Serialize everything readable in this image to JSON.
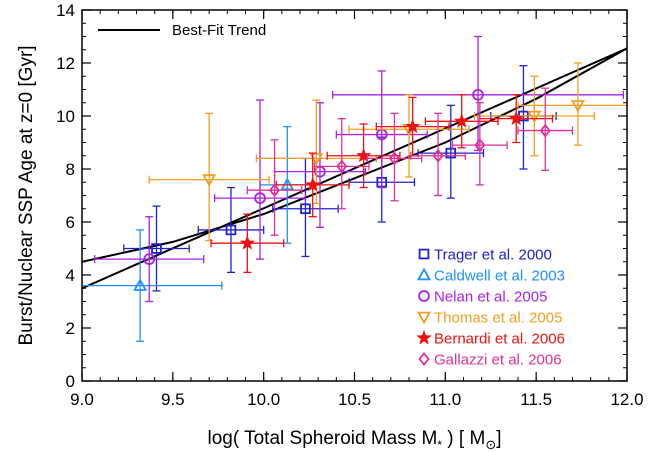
{
  "chart_data": {
    "type": "scatter",
    "xlabel": "log( Total Spheroid Mass M",
    "xlabel_sub": "*",
    "xlabel_unit_open": " )  [ M",
    "xlabel_unit_sub": "⊙",
    "xlabel_unit_close": "]",
    "ylabel": "Burst/Nuclear SSP Age at z=0  [Gyr]",
    "xlim": [
      9.0,
      12.0
    ],
    "ylim": [
      0,
      14
    ],
    "xticks": [
      "9.0",
      "9.5",
      "10.0",
      "10.5",
      "11.0",
      "11.5",
      "12.0"
    ],
    "yticks": [
      "0",
      "2",
      "4",
      "6",
      "8",
      "10",
      "12",
      "14"
    ],
    "legend_placement": "bottom-right",
    "trend": {
      "name": "Best-Fit Trend",
      "color": "#000000",
      "lines": [
        {
          "x": [
            9.0,
            12.0
          ],
          "y": [
            3.5,
            12.55
          ]
        },
        {
          "x": [
            9.0,
            9.5,
            10.0,
            10.5,
            11.0,
            11.5,
            12.0
          ],
          "y": [
            4.5,
            5.25,
            6.3,
            7.65,
            9.0,
            10.65,
            12.55
          ]
        }
      ]
    },
    "series": [
      {
        "name": "Trager et al. 2000",
        "marker": "square",
        "color": "#2222cc",
        "points": [
          {
            "x": 9.41,
            "y": 5.0,
            "xerr": 0.18,
            "yerr": [
              1.6,
              1.6
            ]
          },
          {
            "x": 9.82,
            "y": 5.7,
            "xerr": 0.18,
            "yerr": [
              1.6,
              1.6
            ]
          },
          {
            "x": 10.23,
            "y": 6.5,
            "xerr": 0.18,
            "yerr": [
              1.8,
              1.9
            ]
          },
          {
            "x": 10.65,
            "y": 7.5,
            "xerr": 0.18,
            "yerr": [
              1.5,
              1.7
            ]
          },
          {
            "x": 11.03,
            "y": 8.6,
            "xerr": 0.18,
            "yerr": [
              1.7,
              1.8
            ]
          },
          {
            "x": 11.43,
            "y": 10.0,
            "xerr": 0.18,
            "yerr": [
              2.0,
              1.9
            ]
          }
        ]
      },
      {
        "name": "Caldwell et al. 2003",
        "marker": "triangle-up",
        "color": "#1e90ff",
        "points": [
          {
            "x": 9.32,
            "y": 3.6,
            "xerr": 0.45,
            "yerr": [
              2.1,
              2.1
            ]
          },
          {
            "x": 10.13,
            "y": 7.4,
            "xerr": 0.15,
            "yerr": [
              2.2,
              2.2
            ]
          }
        ]
      },
      {
        "name": "Nelan et al. 2005",
        "marker": "circle",
        "color": "#aa22dd",
        "points": [
          {
            "x": 9.37,
            "y": 4.6,
            "xerr": 0.3,
            "yerr": [
              1.6,
              1.6
            ]
          },
          {
            "x": 9.98,
            "y": 6.9,
            "xerr": 0.25,
            "yerr": [
              2.3,
              3.7
            ]
          },
          {
            "x": 10.31,
            "y": 7.9,
            "xerr": 0.25,
            "yerr": [
              2.1,
              2.6
            ]
          },
          {
            "x": 10.65,
            "y": 9.3,
            "xerr": 0.25,
            "yerr": [
              2.0,
              2.4
            ]
          },
          {
            "x": 11.18,
            "y": 10.8,
            "xerr": 0.8,
            "yerr": [
              2.1,
              2.2
            ]
          }
        ]
      },
      {
        "name": "Thomas et al. 2005",
        "marker": "triangle-down",
        "color": "#f0a020",
        "points": [
          {
            "x": 9.7,
            "y": 7.6,
            "xerr": 0.33,
            "yerr": [
              2.3,
              2.5
            ]
          },
          {
            "x": 10.29,
            "y": 8.4,
            "xerr": 0.33,
            "yerr": [
              1.7,
              2.2
            ]
          },
          {
            "x": 10.8,
            "y": 9.5,
            "xerr": 0.33,
            "yerr": [
              1.8,
              1.3
            ]
          },
          {
            "x": 11.49,
            "y": 10.0,
            "xerr": 0.33,
            "yerr": [
              1.5,
              1.5
            ]
          },
          {
            "x": 11.73,
            "y": 10.4,
            "xerr": 0.33,
            "yerr": [
              1.5,
              1.6
            ]
          }
        ]
      },
      {
        "name": "Bernardi et al. 2006",
        "marker": "star",
        "color": "#ee1111",
        "points": [
          {
            "x": 9.91,
            "y": 5.2,
            "xerr": 0.2,
            "yerr": [
              1.1,
              1.1
            ]
          },
          {
            "x": 10.27,
            "y": 7.4,
            "xerr": 0.2,
            "yerr": [
              1.2,
              1.2
            ]
          },
          {
            "x": 10.55,
            "y": 8.5,
            "xerr": 0.2,
            "yerr": [
              1.2,
              1.2
            ]
          },
          {
            "x": 10.82,
            "y": 9.6,
            "xerr": 0.2,
            "yerr": [
              1.1,
              1.1
            ]
          },
          {
            "x": 11.09,
            "y": 9.8,
            "xerr": 0.2,
            "yerr": [
              1.0,
              1.0
            ]
          },
          {
            "x": 11.39,
            "y": 9.9,
            "xerr": 0.2,
            "yerr": [
              0.9,
              0.9
            ]
          }
        ]
      },
      {
        "name": "Gallazzi et al. 2006",
        "marker": "diamond",
        "color": "#e0309a",
        "points": [
          {
            "x": 10.06,
            "y": 7.2,
            "xerr": 0.15,
            "yerr": [
              1.7,
              1.9
            ]
          },
          {
            "x": 10.43,
            "y": 8.1,
            "xerr": 0.15,
            "yerr": [
              1.6,
              1.8
            ]
          },
          {
            "x": 10.72,
            "y": 8.4,
            "xerr": 0.15,
            "yerr": [
              1.6,
              1.7
            ]
          },
          {
            "x": 10.96,
            "y": 8.5,
            "xerr": 0.15,
            "yerr": [
              1.5,
              1.6
            ]
          },
          {
            "x": 11.19,
            "y": 8.9,
            "xerr": 0.15,
            "yerr": [
              1.5,
              1.6
            ]
          },
          {
            "x": 11.55,
            "y": 9.45,
            "xerr": 0.15,
            "yerr": [
              1.5,
              1.6
            ]
          }
        ]
      }
    ]
  }
}
